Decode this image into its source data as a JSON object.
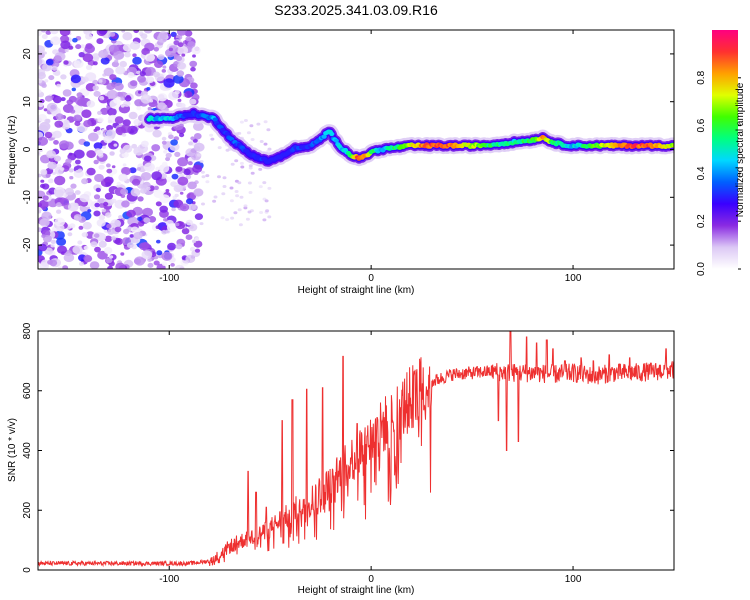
{
  "title": "S233.2025.341.03.09.R16",
  "chart_data": [
    {
      "type": "heatmap",
      "name": "spectrogram",
      "xlabel": "Height of straight line (km)",
      "ylabel": "Frequency (Hz)",
      "xlim": [
        -165,
        150
      ],
      "ylim": [
        -25,
        25
      ],
      "xticks": [
        -100,
        0,
        100
      ],
      "yticks": [
        -20,
        -10,
        0,
        10,
        20
      ],
      "colorbar": {
        "label": "Normalized spectral amplitude",
        "range": [
          0,
          1
        ],
        "ticks": [
          "0.0",
          "0.2",
          "0.4",
          "0.6",
          "0.8"
        ],
        "tick_values": [
          0.0,
          0.2,
          0.4,
          0.6,
          0.8
        ],
        "colors": [
          "#ffffff",
          "#dcc8f5",
          "#8a2be2",
          "#3a00ff",
          "#0060ff",
          "#00d8ff",
          "#00ff80",
          "#40ff00",
          "#e0ff00",
          "#ffa000",
          "#ff3030",
          "#ff0080"
        ]
      },
      "noise_region": {
        "x_from": -165,
        "x_to": -85,
        "typical_amplitude": 0.12
      },
      "ridge": {
        "x": [
          -110,
          -100,
          -93,
          -88,
          -83,
          -78,
          -75,
          -72,
          -69,
          -66,
          -63,
          -60,
          -57,
          -54,
          -51,
          -48,
          -45,
          -42,
          -39,
          -36,
          -33,
          -30,
          -27,
          -24,
          -21,
          -18,
          -15,
          -12,
          -9,
          -6,
          -3,
          0,
          5,
          10,
          20,
          30,
          40,
          50,
          60,
          70,
          80,
          85,
          90,
          95,
          100,
          110,
          120,
          130,
          140,
          150
        ],
        "y": [
          6.5,
          6.5,
          7.0,
          7.5,
          7.0,
          6.5,
          5.0,
          3.5,
          2.0,
          1.0,
          0.0,
          -1.0,
          -1.5,
          -2.0,
          -2.5,
          -2.0,
          -1.5,
          -1.0,
          0.0,
          0.5,
          0.3,
          0.8,
          1.5,
          2.5,
          4.0,
          2.0,
          0.5,
          -0.5,
          -1.5,
          -1.7,
          -1.5,
          -0.5,
          0.0,
          0.3,
          0.8,
          0.8,
          0.8,
          0.8,
          1.0,
          1.5,
          2.0,
          2.5,
          1.5,
          1.0,
          0.8,
          0.8,
          0.8,
          0.8,
          0.8,
          0.8
        ],
        "amplitude": [
          0.45,
          0.45,
          0.35,
          0.3,
          0.35,
          0.4,
          0.3,
          0.3,
          0.35,
          0.3,
          0.3,
          0.3,
          0.25,
          0.3,
          0.25,
          0.25,
          0.25,
          0.25,
          0.3,
          0.3,
          0.3,
          0.3,
          0.35,
          0.4,
          0.45,
          0.4,
          0.45,
          0.5,
          0.7,
          0.9,
          0.85,
          0.6,
          0.45,
          0.5,
          0.75,
          0.9,
          0.85,
          0.7,
          0.55,
          0.5,
          0.6,
          0.8,
          0.6,
          0.5,
          0.45,
          0.6,
          0.8,
          0.9,
          0.85,
          0.7
        ]
      }
    },
    {
      "type": "line",
      "name": "snr",
      "xlabel": "Height of straight line (km)",
      "ylabel": "SNR (10 * v/v)",
      "xlim": [
        -165,
        150
      ],
      "ylim": [
        0,
        800
      ],
      "xticks": [
        -100,
        0,
        100
      ],
      "yticks": [
        0,
        200,
        400,
        600,
        800
      ],
      "color": "#ee3030",
      "envelope_x": [
        -165,
        -120,
        -90,
        -80,
        -75,
        -70,
        -65,
        -60,
        -55,
        -50,
        -45,
        -40,
        -35,
        -30,
        -25,
        -20,
        -15,
        -10,
        -5,
        0,
        5,
        10,
        15,
        20,
        25,
        30,
        40,
        50,
        60,
        70,
        80,
        90,
        100,
        110,
        120,
        130,
        140,
        150
      ],
      "envelope_y": [
        22,
        22,
        22,
        30,
        50,
        80,
        95,
        110,
        120,
        140,
        165,
        185,
        215,
        235,
        260,
        290,
        330,
        370,
        405,
        440,
        475,
        510,
        540,
        575,
        610,
        630,
        655,
        660,
        665,
        660,
        660,
        655,
        660,
        650,
        660,
        660,
        665,
        670
      ],
      "spikes": [
        {
          "x": -61,
          "y": 330
        },
        {
          "x": -57,
          "y": 260
        },
        {
          "x": -52,
          "y": 210
        },
        {
          "x": -44,
          "y": 500
        },
        {
          "x": -39,
          "y": 570
        },
        {
          "x": -32,
          "y": 605
        },
        {
          "x": -24,
          "y": 610
        },
        {
          "x": -14,
          "y": 715
        },
        {
          "x": -7,
          "y": 490
        },
        {
          "x": 3,
          "y": 510
        },
        {
          "x": 63,
          "y": 500
        },
        {
          "x": 67,
          "y": 400
        },
        {
          "x": 69,
          "y": 800
        },
        {
          "x": 73,
          "y": 430
        },
        {
          "x": 77,
          "y": 780
        },
        {
          "x": 82,
          "y": 760
        },
        {
          "x": 87,
          "y": 770
        },
        {
          "x": 90,
          "y": 740
        },
        {
          "x": 96,
          "y": 700
        },
        {
          "x": 104,
          "y": 710
        },
        {
          "x": 110,
          "y": 700
        },
        {
          "x": 118,
          "y": 720
        },
        {
          "x": 128,
          "y": 710
        },
        {
          "x": 146,
          "y": 740
        }
      ]
    }
  ]
}
